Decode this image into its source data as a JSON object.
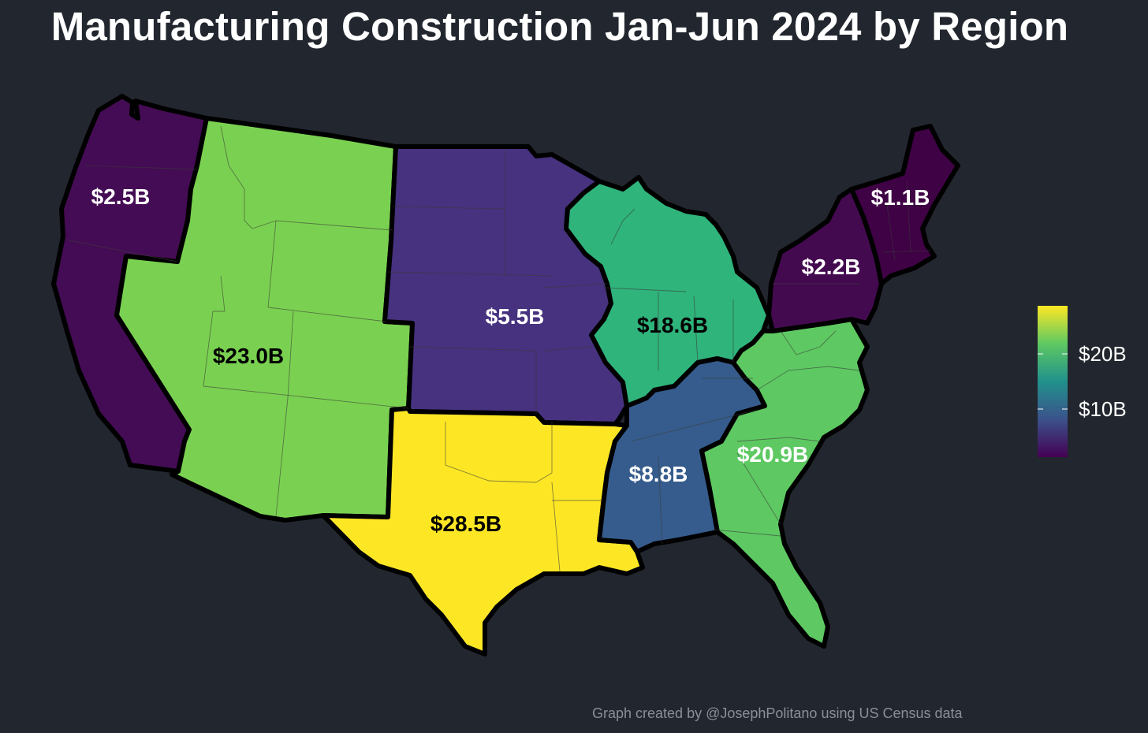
{
  "title": "Manufacturing Construction Jan-Jun 2024 by Region",
  "caption": "Graph created by @JosephPolitano using US Census data",
  "chart_data": {
    "type": "choropleth",
    "title": "Manufacturing Construction Jan-Jun 2024 by Region",
    "units": "USD",
    "regions": [
      {
        "id": "pacific",
        "label": "$2.5B",
        "value": 2.5,
        "color": "#440c54"
      },
      {
        "id": "mountain",
        "label": "$23.0B",
        "value": 23.0,
        "color": "#7ad151"
      },
      {
        "id": "west-north-central",
        "label": "$5.5B",
        "value": 5.5,
        "color": "#46327e"
      },
      {
        "id": "west-south-central",
        "label": "$28.5B",
        "value": 28.5,
        "color": "#fde725"
      },
      {
        "id": "east-north-central",
        "label": "$18.6B",
        "value": 18.6,
        "color": "#2fb47c"
      },
      {
        "id": "east-south-central",
        "label": "$8.8B",
        "value": 8.8,
        "color": "#365c8d"
      },
      {
        "id": "south-atlantic",
        "label": "$20.9B",
        "value": 20.9,
        "color": "#5ec962"
      },
      {
        "id": "middle-atlantic",
        "label": "$2.2B",
        "value": 2.2,
        "color": "#440a50"
      },
      {
        "id": "new-england",
        "label": "$1.1B",
        "value": 1.1,
        "color": "#3f0245"
      }
    ],
    "legend": {
      "ticks": [
        {
          "label": "$20B",
          "value": 20
        },
        {
          "label": "$10B",
          "value": 10
        }
      ],
      "range": [
        1.1,
        28.5
      ],
      "gradient": [
        "#440154",
        "#3b528b",
        "#21918c",
        "#5ec962",
        "#fde725"
      ],
      "placement": "right"
    }
  }
}
